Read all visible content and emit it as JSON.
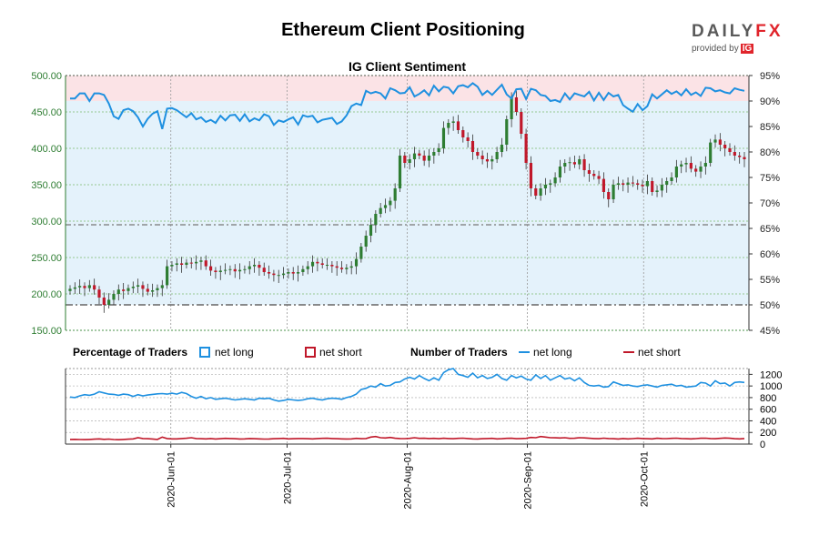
{
  "header": {
    "title": "Ethereum Client Positioning",
    "logo_text": "DAILYFX",
    "logo_sub": "provided by",
    "logo_ig": "IG"
  },
  "colors": {
    "price_axis": "#2e7d32",
    "net_long": "#1e90e0",
    "net_short": "#c0182a",
    "candle_up": "#2e7d32",
    "candle_down": "#c0182a",
    "bg_long_zone": "#e4f2fb",
    "bg_short_zone": "#fbe3e6"
  },
  "chart_data": [
    {
      "type": "candlestick+line",
      "title": "IG Client Sentiment",
      "ylim_left": [
        150,
        500
      ],
      "yticks_left": [
        "150.00",
        "200.00",
        "250.00",
        "300.00",
        "350.00",
        "400.00",
        "450.00",
        "500.00"
      ],
      "ylim_right": [
        45,
        95
      ],
      "yticks_right": [
        "45%",
        "50%",
        "55%",
        "60%",
        "65%",
        "70%",
        "75%",
        "80%",
        "85%",
        "90%",
        "95%"
      ],
      "reference_lines": {
        "left_axis": 295,
        "right_axis_pct": 50
      },
      "grid": true,
      "x_start": "2020-05-06",
      "x_end": "2020-10-27",
      "x_ticks": [
        "2020-Jun-01",
        "2020-Jul-01",
        "2020-Aug-01",
        "2020-Sep-01",
        "2020-Oct-01"
      ],
      "price_close": [
        207,
        209,
        211,
        208,
        212,
        206,
        195,
        185,
        192,
        200,
        206,
        204,
        208,
        210,
        212,
        207,
        203,
        205,
        208,
        212,
        238,
        240,
        242,
        240,
        243,
        242,
        244,
        246,
        238,
        232,
        230,
        232,
        233,
        234,
        231,
        233,
        234,
        238,
        240,
        236,
        230,
        228,
        226,
        226,
        228,
        230,
        228,
        230,
        234,
        238,
        244,
        242,
        240,
        240,
        238,
        236,
        234,
        236,
        238,
        248,
        265,
        280,
        295,
        310,
        318,
        322,
        328,
        345,
        390,
        380,
        385,
        393,
        390,
        383,
        390,
        395,
        400,
        428,
        435,
        437,
        425,
        415,
        410,
        395,
        390,
        385,
        382,
        385,
        395,
        405,
        440,
        470,
        450,
        420,
        380,
        345,
        335,
        345,
        350,
        352,
        360,
        375,
        380,
        381,
        378,
        385,
        370,
        365,
        362,
        358,
        340,
        330,
        350,
        352,
        350,
        353,
        352,
        350,
        348,
        355,
        340,
        342,
        350,
        355,
        360,
        375,
        378,
        380,
        372,
        368,
        375,
        380,
        408,
        412,
        405,
        400,
        395,
        390,
        388,
        385
      ],
      "pct_net_long": [
        90.5,
        90.5,
        91.5,
        91.5,
        90.0,
        91.5,
        91.5,
        91.2,
        89.5,
        87.0,
        86.5,
        88.2,
        88.5,
        88.0,
        86.8,
        85.0,
        86.5,
        87.5,
        88.0,
        84.5,
        88.5,
        88.6,
        88.2,
        87.5,
        86.8,
        87.6,
        86.4,
        86.8,
        85.9,
        86.3,
        85.7,
        87.1,
        86.2,
        87.2,
        87.3,
        86.1,
        87.4,
        86.0,
        86.6,
        86.2,
        87.4,
        87.0,
        85.3,
        86.2,
        85.9,
        86.4,
        86.8,
        85.4,
        87.2,
        86.9,
        87.1,
        85.8,
        86.3,
        86.5,
        86.7,
        85.5,
        86.0,
        87.2,
        89.0,
        89.5,
        89.2,
        92.0,
        91.5,
        91.8,
        91.5,
        90.5,
        92.5,
        92.1,
        91.5,
        91.6,
        92.7,
        90.9,
        91.4,
        92.1,
        91.1,
        93.0,
        91.9,
        92.8,
        92.6,
        91.5,
        92.9,
        93.1,
        92.7,
        93.5,
        92.8,
        91.2,
        92.0,
        91.2,
        92.2,
        93.2,
        91.3,
        90.5,
        92.3,
        92.4,
        90.4,
        92.4,
        92.1,
        91.2,
        91.0,
        90.0,
        90.2,
        89.8,
        91.5,
        90.3,
        91.5,
        91.2,
        90.9,
        91.8,
        90.1,
        91.6,
        90.2,
        91.6,
        90.9,
        91.2,
        89.2,
        88.5,
        87.9,
        89.4,
        88.2,
        89.0,
        91.3,
        90.5,
        91.3,
        92.1,
        91.4,
        91.9,
        91.1,
        92.3,
        91.2,
        91.7,
        91.0,
        92.6,
        92.5,
        91.9,
        92.1,
        91.7,
        91.5,
        92.5,
        92.2,
        92.0
      ],
      "traders_net_long": [
        810,
        800,
        830,
        850,
        840,
        860,
        900,
        880,
        860,
        855,
        840,
        860,
        850,
        820,
        850,
        830,
        845,
        855,
        865,
        870,
        860,
        875,
        860,
        890,
        870,
        820,
        790,
        820,
        780,
        800,
        770,
        780,
        790,
        775,
        760,
        770,
        780,
        770,
        760,
        790,
        780,
        790,
        760,
        740,
        750,
        770,
        760,
        750,
        760,
        780,
        790,
        770,
        760,
        780,
        790,
        785,
        770,
        800,
        820,
        860,
        940,
        960,
        1000,
        980,
        1040,
        1000,
        1010,
        1060,
        1070,
        1120,
        1150,
        1120,
        1180,
        1130,
        1090,
        1140,
        1100,
        1230,
        1280,
        1300,
        1200,
        1180,
        1150,
        1220,
        1140,
        1180,
        1130,
        1150,
        1200,
        1130,
        1100,
        1180,
        1140,
        1170,
        1120,
        1100,
        1190,
        1130,
        1180,
        1100,
        1140,
        1180,
        1120,
        1140,
        1090,
        1140,
        1060,
        1010,
        1000,
        1010,
        980,
        990,
        1070,
        1040,
        1010,
        1020,
        1000,
        990,
        1010,
        1020,
        1000,
        980,
        1010,
        1020,
        1030,
        1000,
        1010,
        980,
        990,
        1000,
        1060,
        1050,
        1000,
        1090,
        1040,
        1050,
        1000,
        1060,
        1070,
        1060
      ],
      "traders_net_short": [
        80,
        82,
        78,
        76,
        80,
        84,
        90,
        82,
        86,
        78,
        75,
        80,
        84,
        90,
        110,
        95,
        92,
        88,
        80,
        120,
        95,
        90,
        90,
        95,
        100,
        110,
        95,
        92,
        90,
        95,
        88,
        92,
        98,
        95,
        92,
        88,
        90,
        95,
        92,
        90,
        86,
        88,
        92,
        95,
        98,
        90,
        92,
        95,
        96,
        92,
        90,
        95,
        98,
        100,
        95,
        92,
        90,
        88,
        90,
        98,
        92,
        95,
        120,
        130,
        110,
        105,
        115,
        100,
        96,
        94,
        98,
        110,
        98,
        100,
        96,
        98,
        92,
        100,
        95,
        92,
        98,
        102,
        96,
        90,
        88,
        92,
        95,
        98,
        90,
        92,
        98,
        100,
        92,
        95,
        98,
        115,
        110,
        130,
        120,
        110,
        108,
        105,
        110,
        98,
        100,
        110,
        106,
        100,
        96,
        92,
        102,
        95,
        92,
        88,
        96,
        90,
        94,
        100,
        96,
        92,
        90,
        100,
        96,
        94,
        98,
        102,
        96,
        92,
        90,
        94,
        100,
        102,
        96,
        92,
        98,
        105,
        100,
        92,
        90,
        96
      ],
      "yticks_lower": [
        "0",
        "200",
        "400",
        "600",
        "800",
        "1000",
        "1200"
      ],
      "ylim_lower": [
        0,
        1300
      ]
    }
  ],
  "legend": {
    "pct_title": "Percentage of Traders",
    "count_title": "Number of Traders",
    "net_long": "net long",
    "net_short": "net short"
  }
}
